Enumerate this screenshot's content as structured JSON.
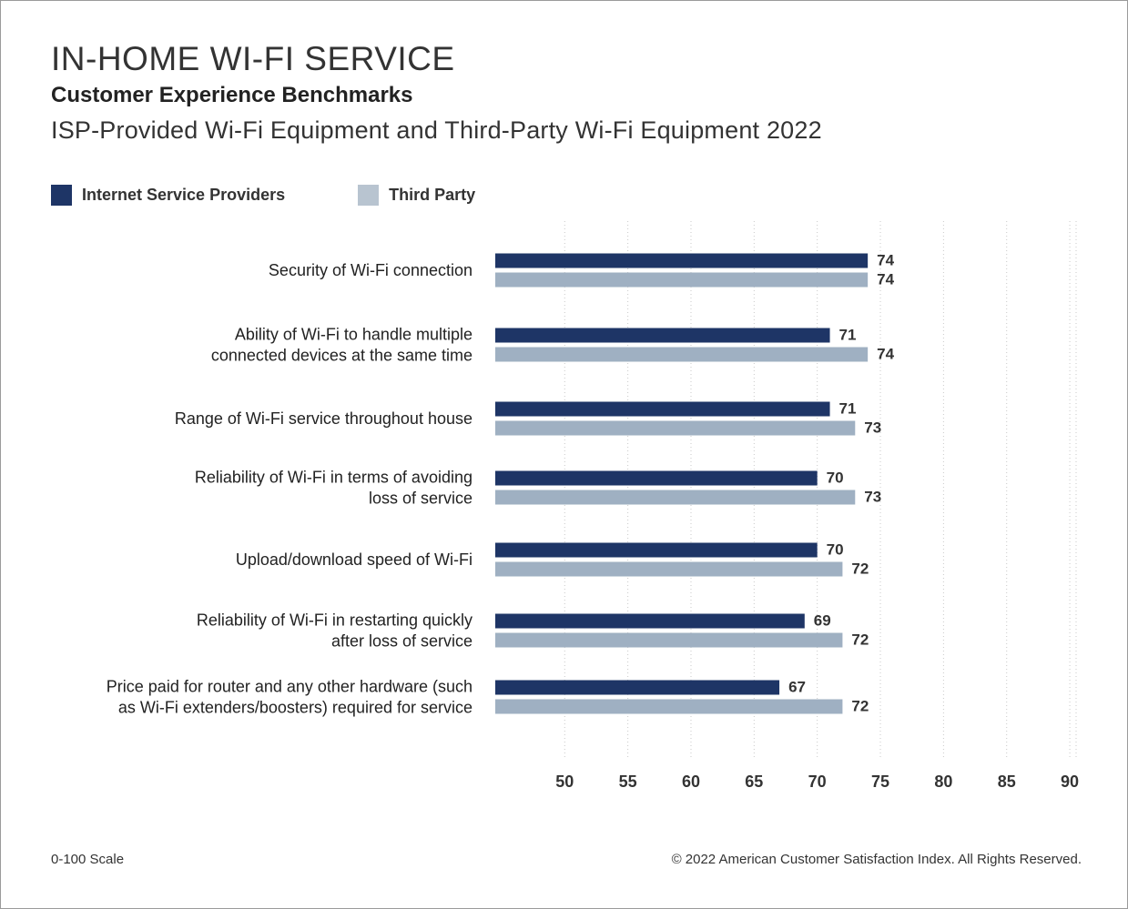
{
  "header": {
    "title": "IN-HOME WI-FI SERVICE",
    "subtitle": "Customer Experience Benchmarks",
    "subtitle2": "ISP-Provided Wi-Fi Equipment and Third-Party Wi-Fi Equipment 2022"
  },
  "legend": [
    {
      "label": "Internet Service Providers",
      "color": "#1e3566"
    },
    {
      "label": "Third Party",
      "color": "#9fb0c2"
    }
  ],
  "footer": {
    "scale_note": "0-100 Scale",
    "copyright": "© 2022 American Customer Satisfaction Index. All Rights Reserved."
  },
  "chart_data": {
    "type": "bar",
    "orientation": "horizontal",
    "categories": [
      [
        "Security of Wi-Fi connection"
      ],
      [
        "Ability of Wi-Fi to handle multiple",
        "connected devices at the same time"
      ],
      [
        "Range of Wi-Fi service throughout house"
      ],
      [
        "Reliability of Wi-Fi in terms of avoiding",
        "loss of service"
      ],
      [
        "Upload/download speed of Wi-Fi"
      ],
      [
        "Reliability of Wi-Fi in restarting quickly",
        "after loss of service"
      ],
      [
        "Price paid for router and any other hardware (such",
        "as Wi-Fi extenders/boosters) required for service"
      ]
    ],
    "series": [
      {
        "name": "Internet Service Providers",
        "color": "#1e3566",
        "values": [
          74,
          71,
          71,
          70,
          70,
          69,
          67
        ]
      },
      {
        "name": "Third Party",
        "color": "#9fb0c2",
        "values": [
          74,
          74,
          73,
          73,
          72,
          72,
          72
        ]
      }
    ],
    "xticks": [
      50,
      55,
      60,
      65,
      70,
      75,
      80,
      85,
      90
    ],
    "xlim": [
      44.5,
      90.5
    ],
    "grid": true,
    "legend_position": "top-left"
  }
}
